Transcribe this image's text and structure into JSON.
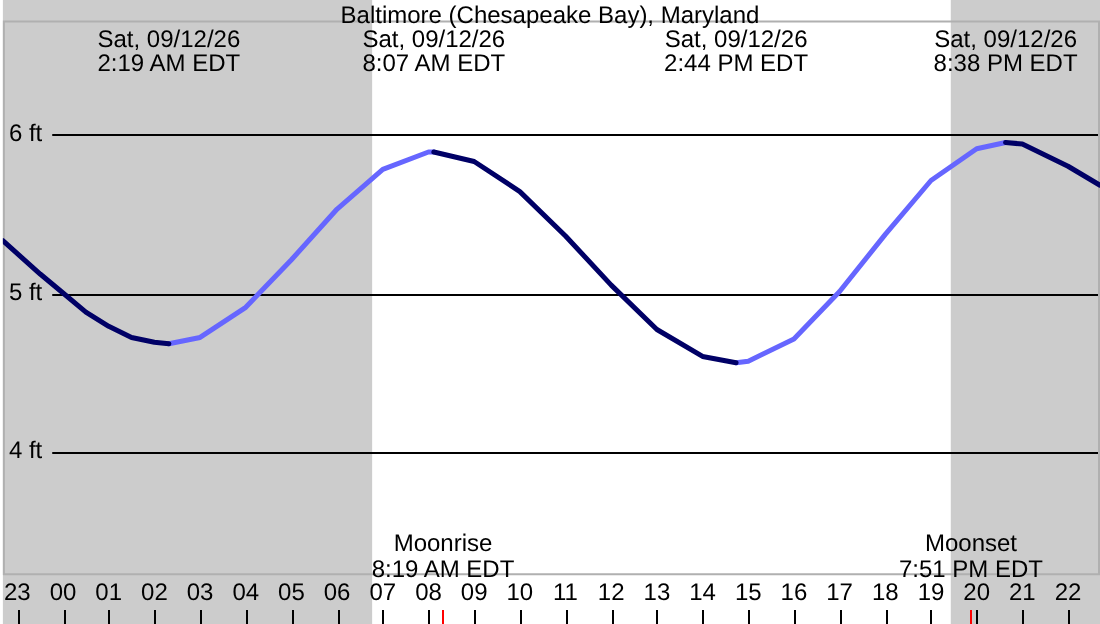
{
  "chart_data": {
    "type": "line",
    "title": "Baltimore (Chesapeake Bay), Maryland",
    "xlim": [
      "--09-11T22:41",
      "--09-12T22:42"
    ],
    "ylim": [
      3.22,
      6.72
    ],
    "xticks": [
      {
        "value": "--09-11T23:00",
        "label": "23"
      },
      {
        "value": "--09-12T00:00",
        "label": "00"
      },
      {
        "value": "--09-12T01:00",
        "label": "01"
      },
      {
        "value": "--09-12T02:00",
        "label": "02"
      },
      {
        "value": "--09-12T03:00",
        "label": "03"
      },
      {
        "value": "--09-12T04:00",
        "label": "04"
      },
      {
        "value": "--09-12T05:00",
        "label": "05"
      },
      {
        "value": "--09-12T06:00",
        "label": "06"
      },
      {
        "value": "--09-12T07:00",
        "label": "07"
      },
      {
        "value": "--09-12T08:00",
        "label": "08"
      },
      {
        "value": "--09-12T09:00",
        "label": "09"
      },
      {
        "value": "--09-12T10:00",
        "label": "10"
      },
      {
        "value": "--09-12T11:00",
        "label": "11"
      },
      {
        "value": "--09-12T12:00",
        "label": "12"
      },
      {
        "value": "--09-12T13:00",
        "label": "13"
      },
      {
        "value": "--09-12T14:00",
        "label": "14"
      },
      {
        "value": "--09-12T15:00",
        "label": "15"
      },
      {
        "value": "--09-12T16:00",
        "label": "16"
      },
      {
        "value": "--09-12T17:00",
        "label": "17"
      },
      {
        "value": "--09-12T18:00",
        "label": "18"
      },
      {
        "value": "--09-12T19:00",
        "label": "19"
      },
      {
        "value": "--09-12T20:00",
        "label": "20"
      },
      {
        "value": "--09-12T21:00",
        "label": "21"
      },
      {
        "value": "--09-12T22:00",
        "label": "22"
      }
    ],
    "x2lim": [
      "--09-11T22:41",
      "--09-12T22:42"
    ],
    "x2ticks": [
      {
        "value": "--09-12T02:19",
        "label": "Sat, 09/12/26\n2:19 AM EDT"
      },
      {
        "value": "--09-12T08:07",
        "label": "Sat, 09/12/26\n8:07 AM EDT"
      },
      {
        "value": "--09-12T14:44",
        "label": "Sat, 09/12/26\n2:44 PM EDT"
      },
      {
        "value": "--09-12T20:38",
        "label": "Sat, 09/12/26\n8:38 PM EDT"
      }
    ],
    "yticks": [
      {
        "value": 4,
        "label": "4 ft"
      },
      {
        "value": 5,
        "label": "5 ft"
      },
      {
        "value": 6,
        "label": "6 ft"
      }
    ],
    "grid": "y",
    "legend": false,
    "marker": "none",
    "line_style": "solid",
    "series": [
      {
        "color": "#000066",
        "x": [
          "--09-11T22:41",
          "--09-11T23:30",
          "--09-12T00:00",
          "--09-12T00:30",
          "--09-12T01:00",
          "--09-12T01:30",
          "--09-12T02:00",
          "--09-12T02:19",
          null,
          "--09-12T08:07",
          "--09-12T09:00",
          "--09-12T10:00",
          "--09-12T11:00",
          "--09-12T12:00",
          "--09-12T13:00",
          "--09-12T14:00",
          "--09-12T14:44",
          null,
          "--09-12T20:38",
          "--09-12T21:00",
          "--09-12T22:00",
          "--09-12T22:42"
        ],
        "values": [
          5.33,
          5.12,
          5.0,
          4.88,
          4.79,
          4.72,
          4.69,
          4.68,
          null,
          5.89,
          5.83,
          5.64,
          5.36,
          5.05,
          4.77,
          4.6,
          4.56,
          null,
          5.95,
          5.94,
          5.8,
          5.68
        ]
      },
      {
        "color": "#6666ff",
        "x": [
          "--09-12T02:19",
          "--09-12T03:00",
          "--09-12T04:00",
          "--09-12T05:00",
          "--09-12T06:00",
          "--09-12T07:00",
          "--09-12T08:00",
          "--09-12T08:07",
          null,
          "--09-12T14:44",
          "--09-12T15:00",
          "--09-12T16:00",
          "--09-12T17:00",
          "--09-12T18:00",
          "--09-12T19:00",
          "--09-12T20:00",
          "--09-12T20:38"
        ],
        "values": [
          4.68,
          4.72,
          4.91,
          5.21,
          5.53,
          5.78,
          5.89,
          5.89,
          null,
          4.56,
          4.57,
          4.71,
          5.01,
          5.37,
          5.71,
          5.91,
          5.95
        ]
      }
    ],
    "bands": [
      {
        "axis": "x",
        "from": "--09-11T22:41",
        "to": "--09-12T06:46",
        "color": "#cccccc"
      },
      {
        "axis": "x",
        "from": "--09-12T19:26",
        "to": "--09-12T22:42",
        "color": "#cccccc"
      }
    ],
    "ref_lines": [
      {
        "axis": "x",
        "value": "--09-12T08:19",
        "label": "Moonrise\n8:19 AM EDT",
        "color": "#ff0000"
      },
      {
        "axis": "x",
        "value": "--09-12T19:51",
        "label": "Moonset\n7:51 PM EDT",
        "color": "#ff0000"
      }
    ]
  }
}
